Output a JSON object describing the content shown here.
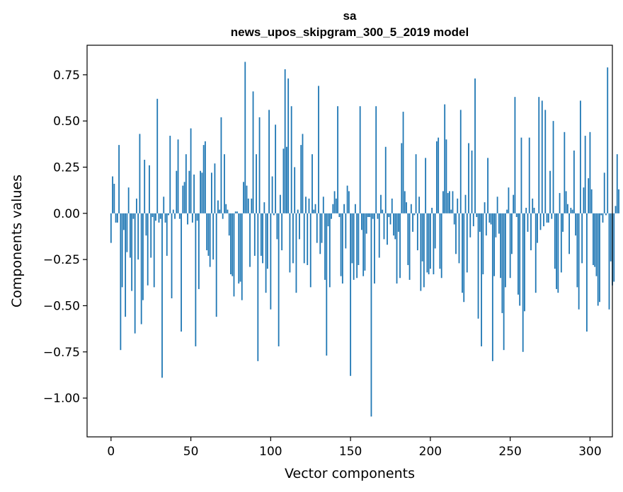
{
  "chart_data": {
    "type": "bar",
    "title": "sa",
    "subtitle": "news_upos_skipgram_300_5_2019 model",
    "xlabel": "Vector components",
    "ylabel": "Components values",
    "bar_color": "#1f77b4",
    "xlim": [
      -15,
      314
    ],
    "ylim": [
      -1.21,
      0.91
    ],
    "x_ticks": [
      0,
      50,
      100,
      150,
      200,
      250,
      300
    ],
    "x_tick_labels": [
      "0",
      "50",
      "100",
      "150",
      "200",
      "250",
      "300"
    ],
    "y_ticks": [
      0.75,
      0.5,
      0.25,
      0.0,
      -0.25,
      -0.5,
      -0.75,
      -1.0
    ],
    "y_tick_labels": [
      "0.75",
      "0.50",
      "0.25",
      "0.00",
      "−0.25",
      "−0.50",
      "−0.75",
      "−1.00"
    ],
    "values": [
      -0.16,
      0.2,
      0.16,
      -0.05,
      -0.05,
      0.37,
      -0.74,
      -0.4,
      -0.09,
      -0.56,
      -0.21,
      0.14,
      -0.24,
      -0.42,
      -0.03,
      -0.65,
      0.08,
      -0.25,
      0.43,
      -0.6,
      -0.47,
      0.29,
      -0.12,
      -0.39,
      0.26,
      -0.24,
      -0.02,
      -0.4,
      -0.04,
      0.62,
      -0.05,
      -0.03,
      -0.89,
      0.09,
      -0.05,
      -0.23,
      -0.01,
      0.42,
      -0.46,
      0.02,
      -0.03,
      0.23,
      0.4,
      -0.03,
      -0.64,
      0.15,
      0.17,
      0.32,
      -0.06,
      0.23,
      0.46,
      -0.05,
      0.21,
      -0.72,
      -0.04,
      -0.41,
      0.23,
      0.22,
      0.37,
      0.39,
      -0.2,
      -0.23,
      -0.29,
      0.22,
      -0.25,
      0.27,
      -0.56,
      0.07,
      0.02,
      0.52,
      -0.03,
      0.32,
      0.05,
      0.02,
      -0.12,
      -0.33,
      -0.34,
      -0.45,
      0.01,
      0.01,
      -0.38,
      -0.37,
      -0.47,
      0.17,
      0.82,
      0.15,
      0.08,
      -0.29,
      0.08,
      0.66,
      -0.23,
      0.32,
      -0.8,
      0.52,
      -0.23,
      -0.27,
      0.06,
      -0.43,
      -0.3,
      0.56,
      -0.52,
      0.2,
      -0.01,
      0.48,
      -0.14,
      -0.72,
      0.1,
      -0.2,
      0.35,
      0.78,
      0.36,
      0.73,
      -0.32,
      0.58,
      -0.27,
      0.25,
      -0.43,
      0.02,
      -0.14,
      0.37,
      0.43,
      -0.27,
      0.09,
      -0.28,
      0.08,
      -0.4,
      0.32,
      0.02,
      0.05,
      -0.16,
      0.69,
      -0.22,
      -0.16,
      0.09,
      -0.36,
      -0.77,
      -0.07,
      -0.4,
      -0.03,
      0.05,
      0.12,
      0.08,
      0.58,
      -0.02,
      -0.34,
      -0.38,
      0.05,
      -0.19,
      0.15,
      0.12,
      -0.88,
      -0.27,
      -0.36,
      0.05,
      -0.35,
      -0.28,
      0.58,
      -0.09,
      -0.34,
      -0.31,
      -0.11,
      -0.02,
      -0.02,
      -1.1,
      -0.03,
      -0.38,
      0.58,
      -0.03,
      -0.24,
      0.1,
      0.02,
      -0.14,
      0.36,
      -0.17,
      -0.02,
      -0.06,
      0.08,
      -0.12,
      -0.14,
      -0.38,
      -0.1,
      -0.35,
      0.38,
      0.55,
      0.12,
      0.06,
      -0.28,
      -0.36,
      0.05,
      -0.1,
      -0.01,
      0.32,
      -0.2,
      0.09,
      -0.42,
      -0.26,
      -0.4,
      0.3,
      -0.32,
      -0.33,
      -0.3,
      0.03,
      -0.33,
      -0.19,
      0.39,
      0.41,
      -0.3,
      -0.35,
      0.12,
      0.59,
      0.4,
      0.11,
      0.12,
      0.02,
      0.12,
      -0.06,
      -0.22,
      0.08,
      -0.27,
      0.56,
      -0.43,
      -0.48,
      0.1,
      -0.32,
      0.38,
      -0.13,
      0.34,
      -0.07,
      0.73,
      -0.02,
      -0.57,
      -0.1,
      -0.72,
      -0.33,
      0.06,
      -0.12,
      0.3,
      -0.05,
      -0.06,
      -0.8,
      -0.34,
      -0.13,
      0.09,
      -0.11,
      -0.35,
      -0.54,
      -0.74,
      -0.4,
      0.02,
      0.14,
      -0.35,
      -0.22,
      0.1,
      0.63,
      -0.02,
      -0.44,
      -0.5,
      0.41,
      -0.75,
      -0.53,
      0.03,
      -0.1,
      0.41,
      -0.2,
      0.08,
      0.03,
      -0.43,
      -0.16,
      0.63,
      -0.09,
      0.61,
      -0.07,
      0.56,
      -0.05,
      -0.05,
      0.23,
      -0.03,
      0.5,
      -0.3,
      -0.41,
      -0.43,
      0.11,
      -0.32,
      -0.1,
      0.44,
      0.12,
      0.05,
      -0.22,
      0.03,
      0.02,
      0.34,
      -0.12,
      -0.4,
      -0.52,
      0.61,
      -0.27,
      0.14,
      0.42,
      -0.64,
      0.19,
      0.44,
      0.13,
      -0.28,
      -0.29,
      -0.34,
      -0.5,
      -0.48,
      -0.01,
      -0.05,
      0.22,
      -0.01,
      0.79,
      -0.52,
      -0.26,
      -0.39,
      -0.37,
      0.04,
      0.32,
      0.13
    ]
  }
}
